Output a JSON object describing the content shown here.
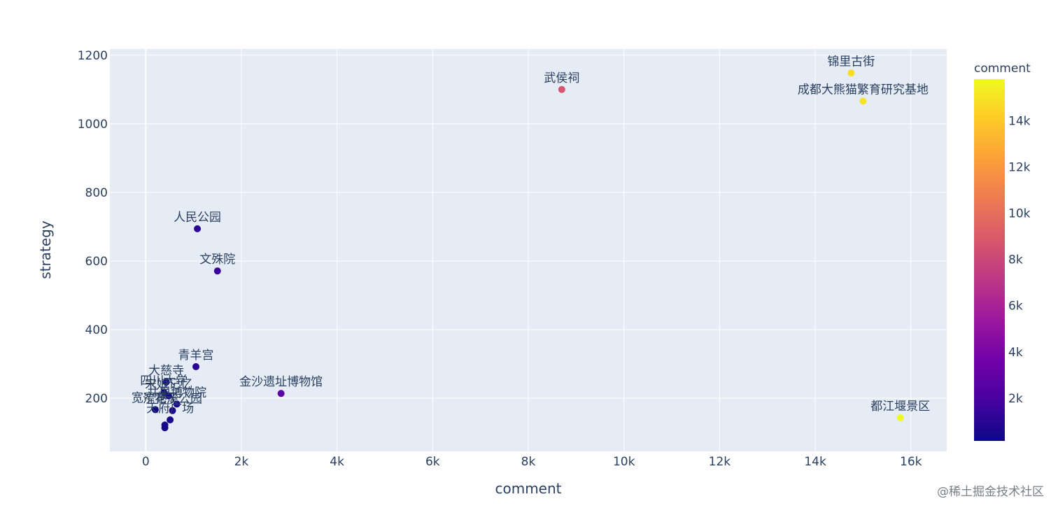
{
  "watermark": "@稀土掘金技术社区",
  "chart_data": {
    "type": "scatter",
    "title": "",
    "xlabel": "comment",
    "ylabel": "strategy",
    "xlim": [
      -750,
      16750
    ],
    "ylim": [
      45,
      1218
    ],
    "x_ticks": [
      0,
      2000,
      4000,
      6000,
      8000,
      10000,
      12000,
      14000,
      16000
    ],
    "x_tick_labels": [
      "0",
      "2k",
      "4k",
      "6k",
      "8k",
      "10k",
      "12k",
      "14k",
      "16k"
    ],
    "y_ticks": [
      200,
      400,
      600,
      800,
      1000,
      1200
    ],
    "y_tick_labels": [
      "200",
      "400",
      "600",
      "800",
      "1000",
      "1200"
    ],
    "grid": true,
    "colorbar": {
      "title": "comment",
      "range": [
        150,
        15800
      ],
      "ticks": [
        2000,
        4000,
        6000,
        8000,
        10000,
        12000,
        14000
      ],
      "tick_labels": [
        "2k",
        "4k",
        "6k",
        "8k",
        "10k",
        "12k",
        "14k"
      ],
      "colors": [
        "#0d0887",
        "#46039f",
        "#7201a8",
        "#9c179e",
        "#bd3786",
        "#d8576b",
        "#ed7953",
        "#fb9f3a",
        "#fdca26",
        "#f0f921"
      ]
    },
    "points": [
      {
        "label": "锦里古街",
        "x": 14750,
        "y": 1148
      },
      {
        "label": "成都大熊猫繁育研究基地",
        "x": 15000,
        "y": 1066
      },
      {
        "label": "武侯祠",
        "x": 8700,
        "y": 1100
      },
      {
        "label": "人民公园",
        "x": 1080,
        "y": 694
      },
      {
        "label": "文殊院",
        "x": 1500,
        "y": 571
      },
      {
        "label": "青羊宫",
        "x": 1050,
        "y": 292
      },
      {
        "label": "金沙遗址博物馆",
        "x": 2830,
        "y": 214
      },
      {
        "label": "都江堰景区",
        "x": 15780,
        "y": 143
      },
      {
        "label": "大慈寺",
        "x": 430,
        "y": 247
      },
      {
        "label": "四川大学",
        "x": 380,
        "y": 217
      },
      {
        "label": "宋娘记忆",
        "x": 480,
        "y": 207
      },
      {
        "label": "井里博物院",
        "x": 650,
        "y": 183
      },
      {
        "label": "浣花溪公园",
        "x": 560,
        "y": 164
      },
      {
        "label": "宽窄巷子",
        "x": 200,
        "y": 167
      },
      {
        "label": "天府广场",
        "x": 510,
        "y": 137
      },
      {
        "label": "",
        "x": 400,
        "y": 122
      },
      {
        "label": "",
        "x": 400,
        "y": 114
      }
    ]
  }
}
